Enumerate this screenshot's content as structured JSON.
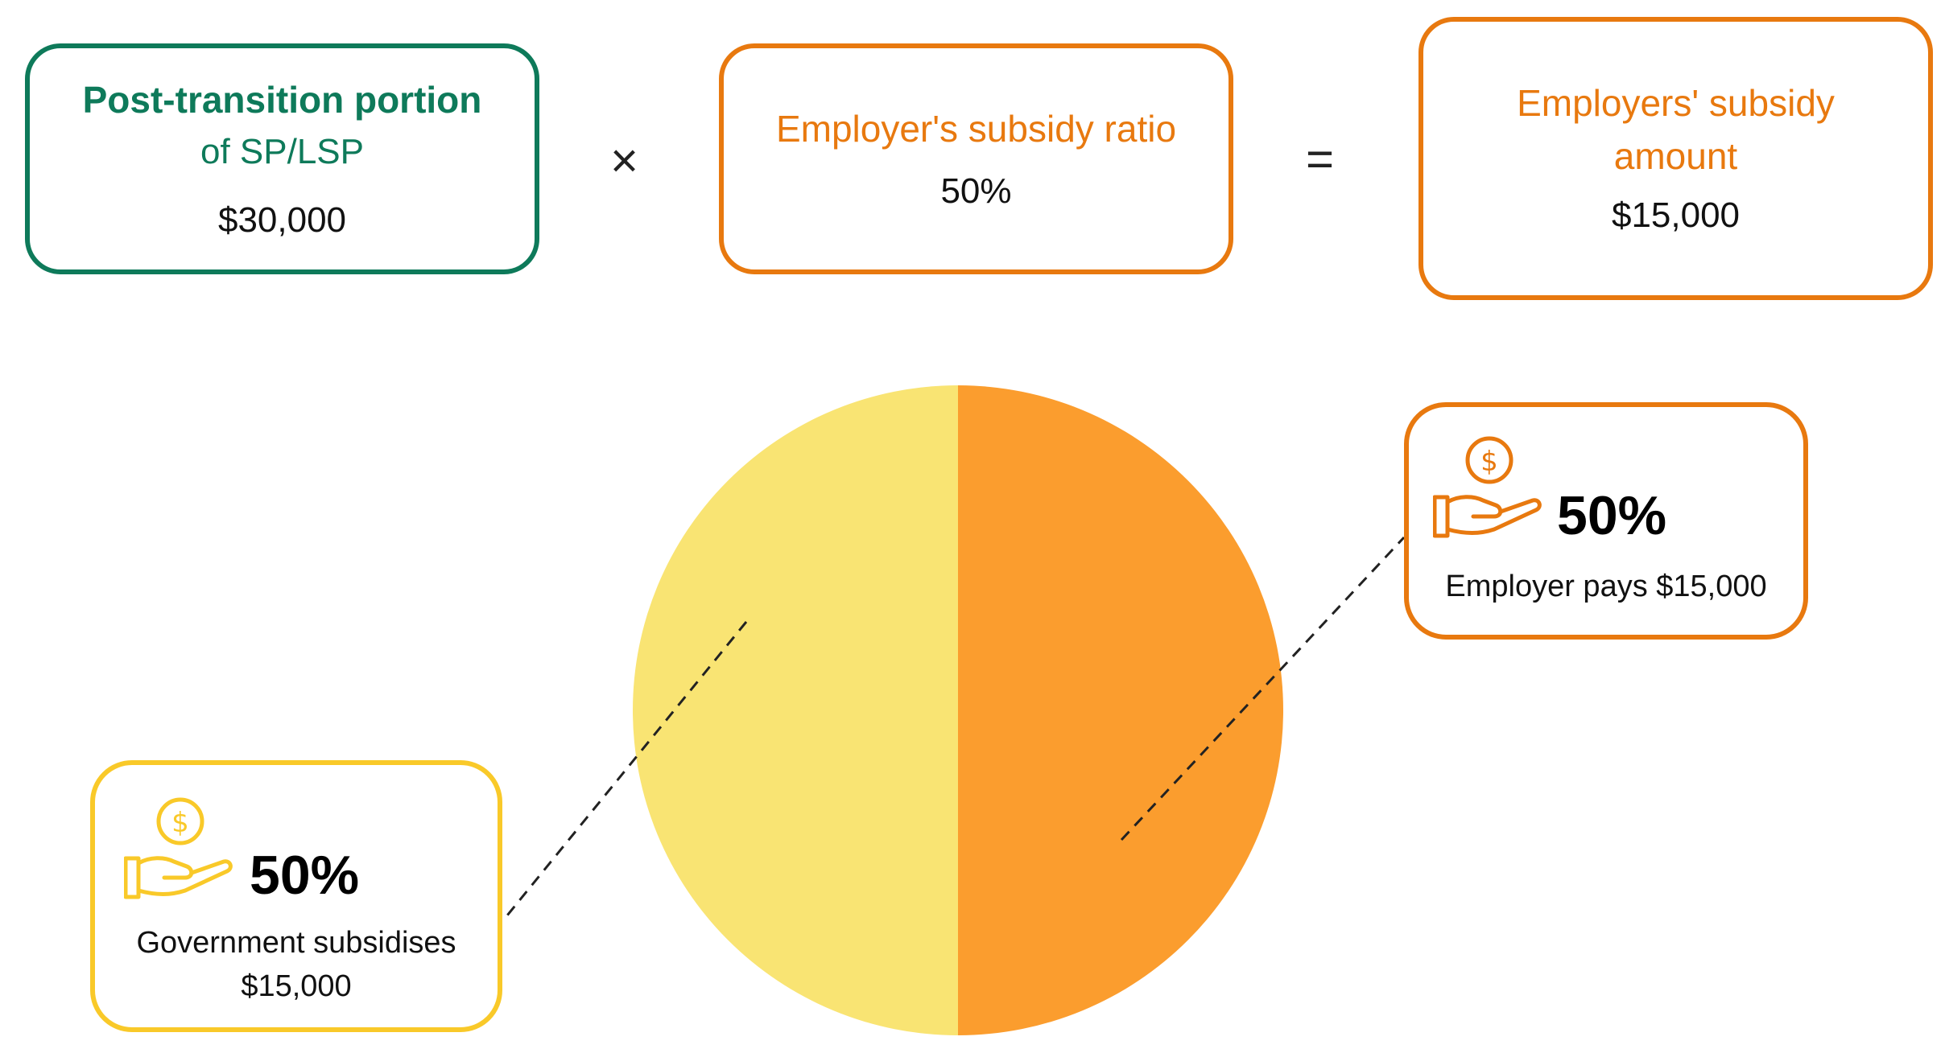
{
  "formula": {
    "post_transition": {
      "title_bold": "Post-transition portion",
      "title_rest": "of SP/LSP",
      "value": "$30,000"
    },
    "operator_times": "×",
    "subsidy_ratio": {
      "title": "Employer's subsidy ratio",
      "value": "50%"
    },
    "operator_equals": "=",
    "subsidy_amount": {
      "title_line1": "Employers' subsidy",
      "title_line2": "amount",
      "value": "$15,000"
    }
  },
  "chart_data": {
    "type": "pie",
    "slices": [
      {
        "label": "Employer pays $15,000",
        "percent": 50,
        "color": "#fb9d2e"
      },
      {
        "label": "Government subsidises $15,000",
        "percent": 50,
        "color": "#f9e473"
      }
    ]
  },
  "callouts": {
    "employer": {
      "percent": "50%",
      "description": "Employer pays $15,000",
      "icon": "hand-coin-icon",
      "color": "#e8790f"
    },
    "government": {
      "percent": "50%",
      "description_line1": "Government subsidises",
      "description_line2": "$15,000",
      "icon": "hand-coin-icon",
      "color": "#f9c929"
    }
  }
}
